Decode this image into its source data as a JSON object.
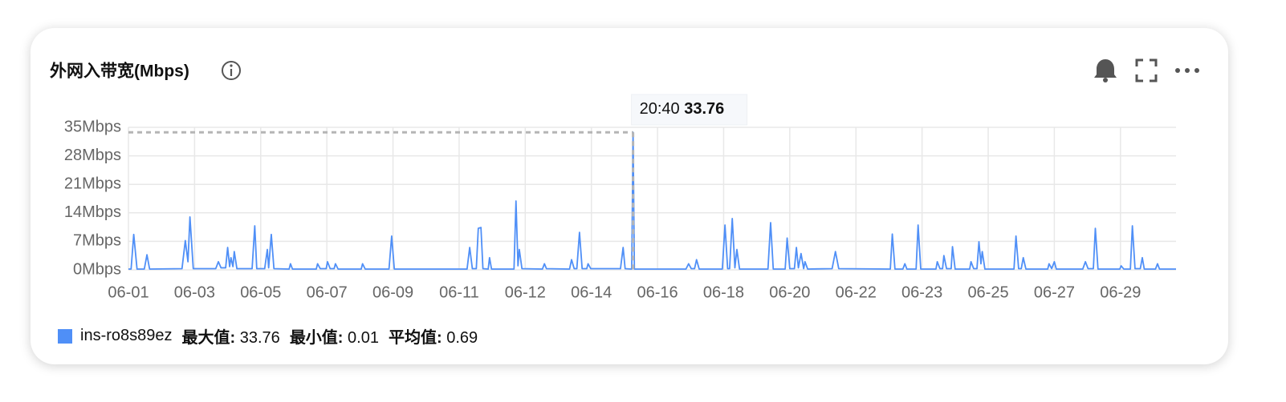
{
  "chart_data": {
    "type": "line",
    "title": "外网入带宽(Mbps)",
    "x": [
      0.0,
      0.04,
      0.08,
      0.13,
      0.24,
      0.28,
      0.32,
      0.81,
      0.86,
      0.9,
      0.93,
      0.98,
      1.32,
      1.36,
      1.4,
      1.47,
      1.5,
      1.53,
      1.55,
      1.58,
      1.6,
      1.64,
      1.87,
      1.91,
      1.94,
      2.06,
      2.1,
      2.12,
      2.16,
      2.2,
      2.43,
      2.45,
      2.48,
      2.84,
      2.86,
      2.9,
      2.99,
      3.01,
      3.05,
      3.11,
      3.13,
      3.17,
      3.52,
      3.54,
      3.58,
      3.94,
      3.98,
      4.02,
      5.12,
      5.16,
      5.2,
      5.26,
      5.29,
      5.33,
      5.36,
      5.44,
      5.46,
      5.49,
      5.83,
      5.86,
      5.89,
      5.91,
      5.95,
      6.26,
      6.29,
      6.32,
      6.67,
      6.7,
      6.74,
      6.78,
      6.82,
      6.86,
      6.93,
      6.95,
      6.99,
      7.44,
      7.48,
      7.51,
      7.61,
      7.63,
      7.65,
      8.43,
      8.47,
      8.51,
      8.56,
      8.59,
      8.63,
      8.98,
      9.02,
      9.06,
      9.09,
      9.13,
      9.17,
      9.2,
      9.24,
      9.67,
      9.71,
      9.75,
      9.93,
      9.96,
      10.0,
      10.07,
      10.1,
      10.13,
      10.17,
      10.21,
      10.23,
      10.27,
      10.64,
      10.69,
      10.74,
      11.52,
      11.55,
      11.59,
      11.71,
      11.74,
      11.77,
      11.91,
      11.94,
      11.98,
      12.21,
      12.23,
      12.27,
      12.31,
      12.33,
      12.37,
      12.44,
      12.46,
      12.5,
      12.72,
      12.74,
      12.78,
      12.83,
      12.86,
      12.89,
      12.91,
      12.95,
      13.39,
      13.42,
      13.46,
      13.5,
      13.53,
      13.57,
      13.9,
      13.92,
      13.96,
      14.0,
      14.03,
      14.43,
      14.47,
      14.51,
      14.59,
      14.62,
      14.66,
      14.99,
      15.01,
      15.05,
      15.15,
      15.18,
      15.22,
      15.3,
      15.33,
      15.36,
      15.53,
      15.56,
      15.59,
      15.84
    ],
    "series": [
      {
        "name": "ins-ro8s89ez",
        "color": "#4f8ff7",
        "values": [
          0.2,
          0.2,
          8.7,
          0.2,
          0.2,
          3.7,
          0.2,
          0.3,
          7.2,
          2,
          13,
          0.3,
          0.3,
          2,
          0.5,
          0.5,
          5.5,
          0.8,
          3,
          0.8,
          4.5,
          0.3,
          0.3,
          10.8,
          0.3,
          0.3,
          5,
          0.5,
          8.7,
          0.3,
          0.2,
          1.5,
          0.2,
          0.2,
          1.5,
          0.3,
          0.3,
          2,
          0.3,
          0.3,
          1.5,
          0.2,
          0.2,
          1.5,
          0.2,
          0.2,
          8.3,
          0.2,
          0.2,
          5.5,
          0.3,
          0.3,
          10.2,
          10.4,
          0.3,
          0.2,
          3,
          0.2,
          0.2,
          16.9,
          1,
          5,
          0.3,
          0.2,
          1.5,
          0.3,
          0.2,
          2.5,
          0.3,
          0.3,
          9.2,
          0.3,
          0.3,
          1.5,
          0.3,
          0.3,
          5.5,
          0.3,
          0.2,
          33.76,
          0.2,
          0.2,
          1.5,
          0.3,
          0.3,
          2.5,
          0.2,
          0.2,
          11,
          0.3,
          0.3,
          12.6,
          0.5,
          5,
          0.2,
          0.2,
          11.6,
          0.2,
          0.2,
          7.8,
          0.3,
          0.3,
          5.5,
          0.5,
          4,
          0.3,
          2,
          0.2,
          0.3,
          4.5,
          0.3,
          0.2,
          8.8,
          0.2,
          0.2,
          1.5,
          0.2,
          0.2,
          11,
          0.2,
          0.2,
          2,
          0.3,
          0.3,
          3.5,
          0.3,
          0.3,
          5.7,
          0.2,
          0.2,
          2,
          0.3,
          0.3,
          6.9,
          1.5,
          4.5,
          0.2,
          0.2,
          8.3,
          0.3,
          0.3,
          3,
          0.2,
          0.2,
          1.5,
          0.3,
          2,
          0.2,
          0.2,
          2,
          0.3,
          0.3,
          10.2,
          0.2,
          0.2,
          1,
          0.2,
          0.2,
          10.8,
          0.3,
          0.3,
          3,
          0.2,
          0.2,
          1.5,
          0.2,
          0.2
        ]
      }
    ],
    "xlim": [
      0,
      15.84
    ],
    "xticks": [
      {
        "value": 0,
        "label": "06-01"
      },
      {
        "value": 1,
        "label": "06-03"
      },
      {
        "value": 2,
        "label": "06-05"
      },
      {
        "value": 3,
        "label": "06-07"
      },
      {
        "value": 4,
        "label": "06-09"
      },
      {
        "value": 5,
        "label": "06-11"
      },
      {
        "value": 6,
        "label": "06-12"
      },
      {
        "value": 7,
        "label": "06-14"
      },
      {
        "value": 8,
        "label": "06-16"
      },
      {
        "value": 9,
        "label": "06-18"
      },
      {
        "value": 10,
        "label": "06-20"
      },
      {
        "value": 11,
        "label": "06-22"
      },
      {
        "value": 12,
        "label": "06-23"
      },
      {
        "value": 13,
        "label": "06-25"
      },
      {
        "value": 14,
        "label": "06-27"
      },
      {
        "value": 15,
        "label": "06-29"
      }
    ],
    "ylim": [
      0,
      35
    ],
    "yticks": [
      {
        "value": 0,
        "label": "0Mbps"
      },
      {
        "value": 7,
        "label": "7Mbps"
      },
      {
        "value": 14,
        "label": "14Mbps"
      },
      {
        "value": 21,
        "label": "21Mbps"
      },
      {
        "value": 28,
        "label": "28Mbps"
      },
      {
        "value": 35,
        "label": "35Mbps"
      }
    ],
    "grid": true,
    "tooltip": {
      "time": "20:40"
    },
    "stats": [
      {
        "label": "最大值:",
        "value": 33.76
      },
      {
        "label": "最小值:",
        "value": 0.01
      },
      {
        "label": "平均值:",
        "value": 0.69
      }
    ]
  }
}
